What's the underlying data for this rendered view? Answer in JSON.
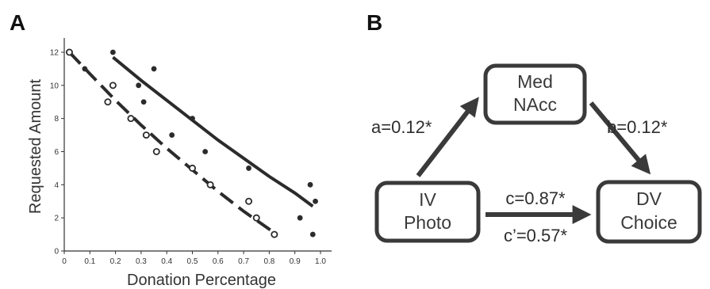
{
  "panels": {
    "a_label": "A",
    "b_label": "B"
  },
  "chart_data": {
    "type": "scatter",
    "title": "",
    "xlabel": "Donation Percentage",
    "ylabel": "Requested Amount",
    "xlim": [
      0,
      1.0
    ],
    "ylim": [
      0,
      12
    ],
    "xticks": [
      "0",
      "0.1",
      "0.2",
      "0.3",
      "0.4",
      "0.5",
      "0.6",
      "0.7",
      "0.8",
      "0.9",
      "1.0"
    ],
    "yticks": [
      "0",
      "2",
      "4",
      "6",
      "8",
      "10",
      "12"
    ],
    "grid": false,
    "legend": "none",
    "series": [
      {
        "marker": "filled-dot",
        "line": "solid",
        "color": "#2b2b2b",
        "points": [
          {
            "x": 0.02,
            "y": 12
          },
          {
            "x": 0.08,
            "y": 11
          },
          {
            "x": 0.19,
            "y": 12
          },
          {
            "x": 0.29,
            "y": 10
          },
          {
            "x": 0.31,
            "y": 9
          },
          {
            "x": 0.35,
            "y": 11
          },
          {
            "x": 0.42,
            "y": 7
          },
          {
            "x": 0.5,
            "y": 8
          },
          {
            "x": 0.55,
            "y": 6
          },
          {
            "x": 0.57,
            "y": 4
          },
          {
            "x": 0.72,
            "y": 5
          },
          {
            "x": 0.92,
            "y": 2
          },
          {
            "x": 0.96,
            "y": 4
          },
          {
            "x": 0.97,
            "y": 1
          },
          {
            "x": 0.98,
            "y": 3
          }
        ],
        "fit": [
          {
            "x": 0.19,
            "y": 11.7
          },
          {
            "x": 0.3,
            "y": 10.3
          },
          {
            "x": 0.4,
            "y": 9.1
          },
          {
            "x": 0.5,
            "y": 7.9
          },
          {
            "x": 0.6,
            "y": 6.7
          },
          {
            "x": 0.7,
            "y": 5.6
          },
          {
            "x": 0.8,
            "y": 4.5
          },
          {
            "x": 0.9,
            "y": 3.5
          },
          {
            "x": 0.97,
            "y": 2.7
          }
        ]
      },
      {
        "marker": "open-circle",
        "line": "dashed",
        "color": "#2b2b2b",
        "points": [
          {
            "x": 0.02,
            "y": 12
          },
          {
            "x": 0.17,
            "y": 9
          },
          {
            "x": 0.19,
            "y": 10
          },
          {
            "x": 0.26,
            "y": 8
          },
          {
            "x": 0.32,
            "y": 7
          },
          {
            "x": 0.36,
            "y": 6
          },
          {
            "x": 0.5,
            "y": 5
          },
          {
            "x": 0.57,
            "y": 4
          },
          {
            "x": 0.72,
            "y": 3
          },
          {
            "x": 0.75,
            "y": 2
          },
          {
            "x": 0.82,
            "y": 1
          }
        ],
        "fit": [
          {
            "x": 0.02,
            "y": 12
          },
          {
            "x": 0.1,
            "y": 10.7
          },
          {
            "x": 0.2,
            "y": 9.1
          },
          {
            "x": 0.3,
            "y": 7.6
          },
          {
            "x": 0.4,
            "y": 6.2
          },
          {
            "x": 0.5,
            "y": 4.9
          },
          {
            "x": 0.6,
            "y": 3.6
          },
          {
            "x": 0.7,
            "y": 2.4
          },
          {
            "x": 0.82,
            "y": 1.1
          }
        ]
      }
    ]
  },
  "diagram": {
    "nodes": {
      "med": [
        "Med",
        "NAcc"
      ],
      "iv": [
        "IV",
        "Photo"
      ],
      "dv": [
        "DV",
        "Choice"
      ]
    },
    "paths": {
      "a": "a=0.12*",
      "b": "b=0.12*",
      "c": "c=0.87*",
      "c_prime": "c’=0.57*"
    },
    "colors": {
      "stroke": "#3a3a3a",
      "text": "#333333"
    }
  }
}
